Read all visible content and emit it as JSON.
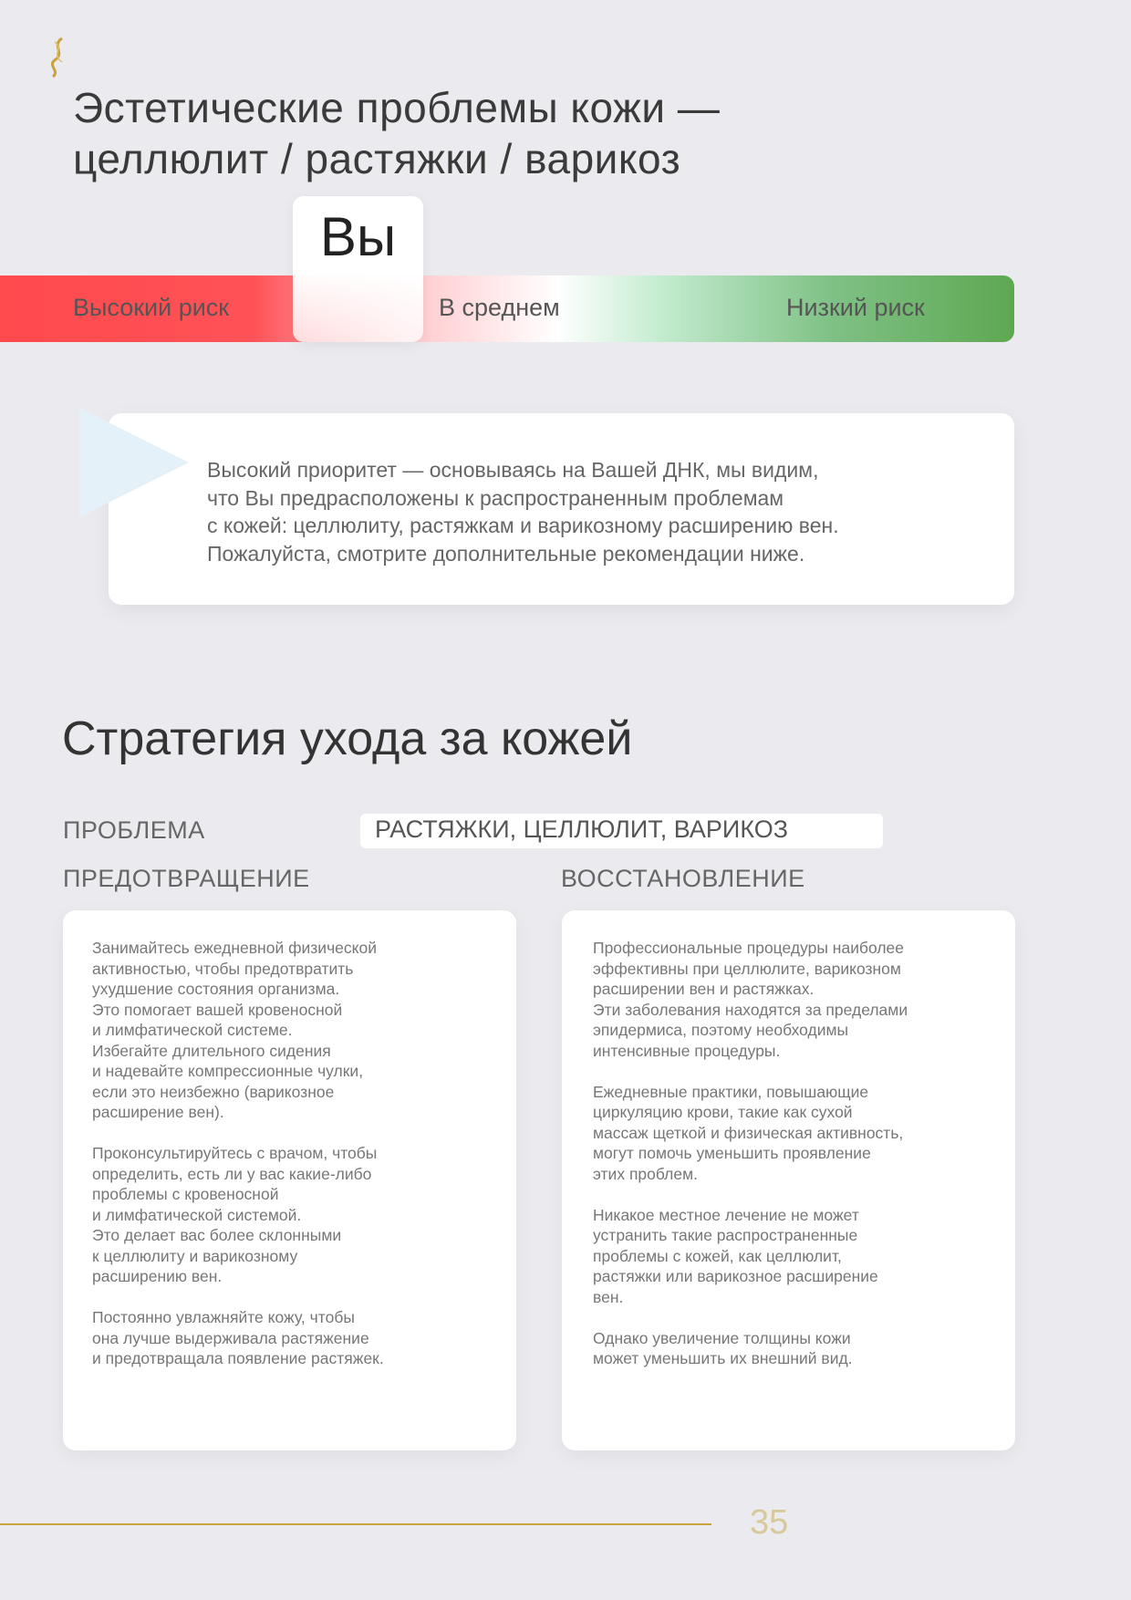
{
  "header": {
    "logo": "dna-helix-logo",
    "title_line1": "Эстетические проблемы кожи —",
    "title_line2": "целлюлит / растяжки / варикоз"
  },
  "risk_scale": {
    "marker_label": "Вы",
    "high": "Высокий риск",
    "mid": "В среднем",
    "low": "Низкий риск",
    "position": "high",
    "colors": {
      "high": "#ff4a4e",
      "low": "#5ea852"
    }
  },
  "callout": {
    "text": "Высокий приоритет — основываясь на Вашей ДНК, мы видим,\nчто Вы предрасположены к распространенным проблемам\nс кожей: целлюлиту, растяжкам и варикозному расширению вен.\nПожалуйста, смотрите дополнительные рекомендации ниже."
  },
  "strategy": {
    "title": "Стратегия ухода за кожей",
    "problem_label": "ПРОБЛЕМА",
    "problem_value": "РАСТЯЖКИ, ЦЕЛЛЮЛИТ, ВАРИКОЗ",
    "prevention_label": "ПРЕДОТВРАЩЕНИЕ",
    "recovery_label": "ВОССТАНОВЛЕНИЕ",
    "prevention_text": "Занимайтесь ежедневной физической\nактивностью, чтобы предотвратить\nухудшение состояния организма.\nЭто помогает вашей кровеносной\nи лимфатической системе.\nИзбегайте длительного сидения\nи надевайте компрессионные чулки,\nесли это неизбежно (варикозное\nрасширение вен).\n\nПроконсультируйтесь с врачом, чтобы\nопределить, есть ли у вас какие-либо\nпроблемы с кровеносной\nи лимфатической системой.\nЭто делает вас более склонными\nк целлюлиту и варикозному\nрасширению вен.\n\nПостоянно увлажняйте кожу, чтобы\nона лучше выдерживала растяжение\nи предотвращала появление растяжек.",
    "recovery_text": "Профессиональные процедуры наиболее\nэффективны при целлюлите, варикозном\nрасширении вен и растяжках.\nЭти заболевания находятся за пределами\nэпидермиса, поэтому необходимы\nинтенсивные процедуры.\n\nЕжедневные практики, повышающие\nциркуляцию крови, такие как сухой\nмассаж щеткой и физическая активность,\nмогут помочь уменьшить проявление\nэтих проблем.\n\nНикакое местное лечение не может\nустранить такие распространенные\nпроблемы с кожей, как целлюлит,\nрастяжки или варикозное расширение\nвен.\n\nОднако увеличение толщины кожи\nможет уменьшить их внешний вид."
  },
  "footer": {
    "page_number": "35",
    "accent": "#c9a23c"
  }
}
